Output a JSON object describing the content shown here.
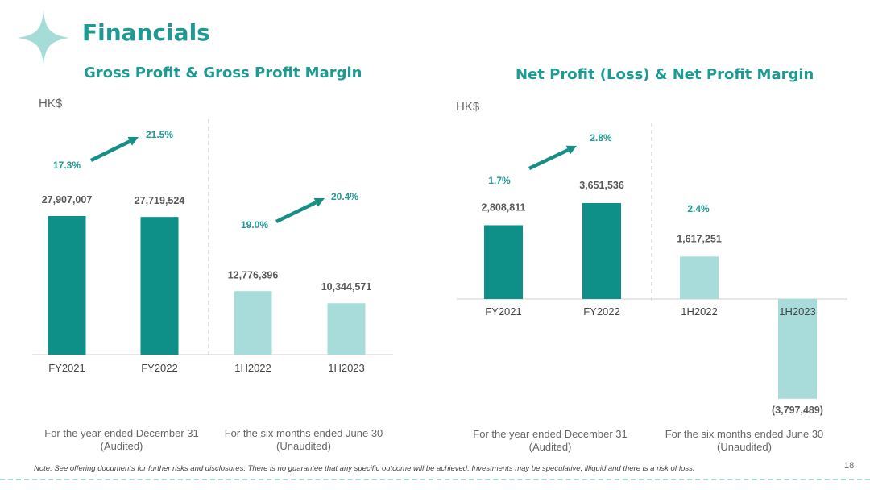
{
  "title": "Financials",
  "colors": {
    "accent": "#1e9a92",
    "dark_bar": "#0e8f87",
    "light_bar": "#a8dcda",
    "arrow": "#178f86"
  },
  "chart_data": [
    {
      "type": "bar",
      "title": "Gross Profit & Gross Profit Margin",
      "unit": "HK$",
      "categories": [
        "FY2021",
        "FY2022",
        "1H2022",
        "1H2023"
      ],
      "values": [
        27907007,
        27719524,
        12776396,
        10344571
      ],
      "value_labels": [
        "27,907,007",
        "27,719,524",
        "12,776,396",
        "10,344,571"
      ],
      "margins": [
        "17.3%",
        "21.5%",
        "19.0%",
        "20.4%"
      ],
      "period_labels": [
        "For the year ended December 31\n(Audited)",
        "For the six months ended June 30\n(Unaudited)"
      ],
      "ylim": [
        0,
        34000000
      ]
    },
    {
      "type": "bar",
      "title": "Net Profit (Loss) & Net Profit Margin",
      "unit": "HK$",
      "categories": [
        "FY2021",
        "FY2022",
        "1H2022",
        "1H2023"
      ],
      "values": [
        2808811,
        3651536,
        1617251,
        -3797489
      ],
      "value_labels": [
        "2,808,811",
        "3,651,536",
        "1,617,251",
        "(3,797,489)"
      ],
      "margins": [
        "1.7%",
        "2.8%",
        "2.4%"
      ],
      "period_labels": [
        "For the year ended December 31\n(Audited)",
        "For the six months ended June 30\n(Unaudited)"
      ],
      "ylim": [
        -3800000,
        4200000
      ]
    }
  ],
  "footer": {
    "note": "Note: See offering documents for further risks and disclosures. There is no guarantee that any specific outcome will be achieved. Investments may be  speculative, illiquid and there is a risk of loss.",
    "page": "18"
  }
}
